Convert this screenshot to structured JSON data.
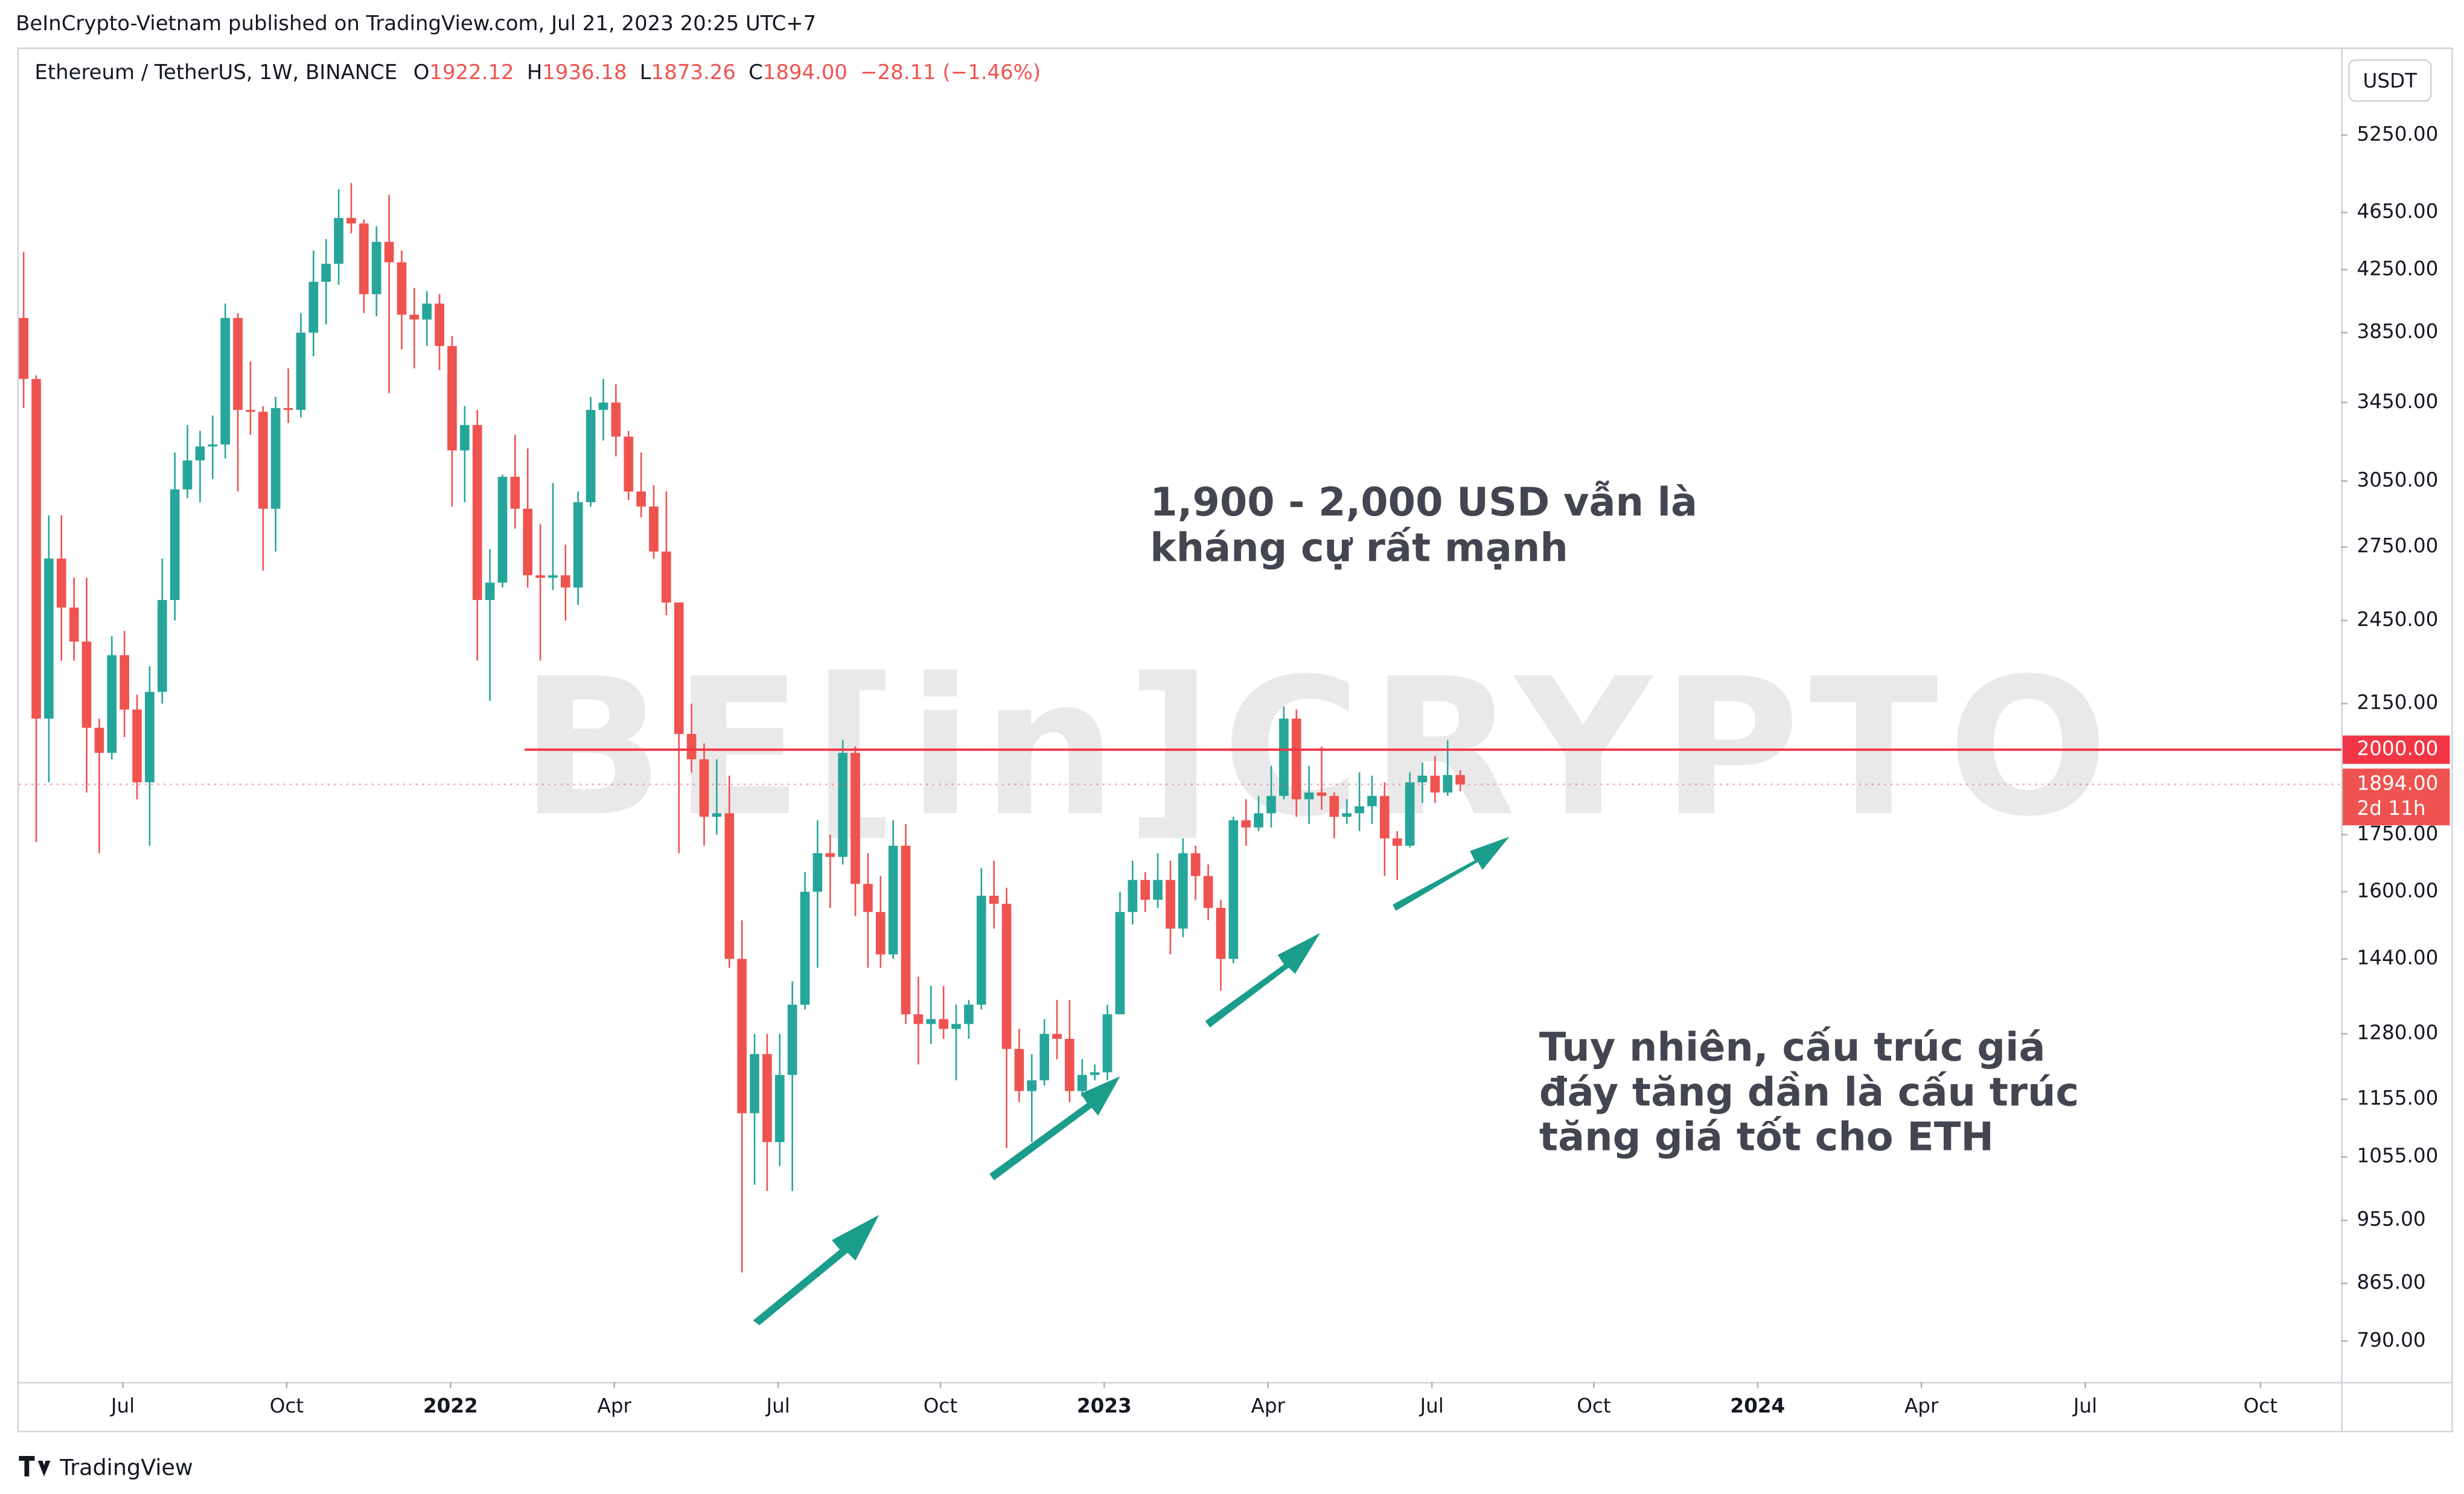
{
  "header": {
    "published": "BeInCrypto-Vietnam published on TradingView.com, Jul 21, 2023 20:25 UTC+7",
    "brand": "TradingView"
  },
  "chart_data": {
    "type": "candlestick",
    "symbol": "Ethereum / TetherUS, 1W, BINANCE",
    "legend": {
      "o": "O",
      "open": "1922.12",
      "h": "H",
      "high": "1936.18",
      "l": "L",
      "low": "1873.26",
      "c": "C",
      "close": "1894.00",
      "change": "−28.11 (−1.46%)"
    },
    "currency": "USDT",
    "watermark": "BE[in]CRYPTO",
    "up_color": "#26a69a",
    "down_color": "#ef5350",
    "log_scale": true,
    "ylim": [
      741,
      6025
    ],
    "yticks": [
      {
        "value": 5250,
        "label": "5250.00"
      },
      {
        "value": 4650,
        "label": "4650.00"
      },
      {
        "value": 4250,
        "label": "4250.00"
      },
      {
        "value": 3850,
        "label": "3850.00"
      },
      {
        "value": 3450,
        "label": "3450.00"
      },
      {
        "value": 3050,
        "label": "3050.00"
      },
      {
        "value": 2750,
        "label": "2750.00"
      },
      {
        "value": 2450,
        "label": "2450.00"
      },
      {
        "value": 2150,
        "label": "2150.00"
      },
      {
        "value": 1750,
        "label": "1750.00"
      },
      {
        "value": 1600,
        "label": "1600.00"
      },
      {
        "value": 1440,
        "label": "1440.00"
      },
      {
        "value": 1280,
        "label": "1280.00"
      },
      {
        "value": 1155,
        "label": "1155.00"
      },
      {
        "value": 1055,
        "label": "1055.00"
      },
      {
        "value": 955,
        "label": "955.00"
      },
      {
        "value": 865,
        "label": "865.00"
      },
      {
        "value": 790,
        "label": "790.00"
      }
    ],
    "xlim": [
      -0.375,
      183.9
    ],
    "xticks": [
      {
        "value": 7.875,
        "label": "Jul"
      },
      {
        "value": 20.875,
        "label": "Oct"
      },
      {
        "value": 33.875,
        "label": "2022"
      },
      {
        "value": 46.875,
        "label": "Apr"
      },
      {
        "value": 59.875,
        "label": "Jul"
      },
      {
        "value": 72.75,
        "label": "Oct"
      },
      {
        "value": 85.75,
        "label": "2023"
      },
      {
        "value": 98.75,
        "label": "Apr"
      },
      {
        "value": 111.75,
        "label": "Jul"
      },
      {
        "value": 124.6,
        "label": "Oct"
      },
      {
        "value": 137.6,
        "label": "2024"
      },
      {
        "value": 150.6,
        "label": "Apr"
      },
      {
        "value": 163.6,
        "label": "Jul"
      },
      {
        "value": 177.5,
        "label": "Oct"
      }
    ],
    "candles": [
      [
        3940,
        4370,
        3420,
        3580
      ],
      [
        3580,
        3600,
        1730,
        2100
      ],
      [
        2100,
        2890,
        1900,
        2700
      ],
      [
        2700,
        2890,
        2300,
        2500
      ],
      [
        2500,
        2620,
        2300,
        2370
      ],
      [
        2370,
        2620,
        1870,
        2070
      ],
      [
        2070,
        2100,
        1700,
        1990
      ],
      [
        1990,
        2390,
        1970,
        2320
      ],
      [
        2320,
        2410,
        2040,
        2130
      ],
      [
        2130,
        2180,
        1850,
        1900
      ],
      [
        1900,
        2280,
        1720,
        2190
      ],
      [
        2190,
        2700,
        2150,
        2530
      ],
      [
        2530,
        3190,
        2450,
        3010
      ],
      [
        3010,
        3330,
        2970,
        3150
      ],
      [
        3150,
        3300,
        2950,
        3220
      ],
      [
        3220,
        3380,
        3060,
        3230
      ],
      [
        3230,
        4030,
        3160,
        3940
      ],
      [
        3940,
        3970,
        3000,
        3410
      ],
      [
        3410,
        3680,
        3280,
        3400
      ],
      [
        3400,
        3430,
        2650,
        2920
      ],
      [
        2920,
        3480,
        2730,
        3420
      ],
      [
        3420,
        3640,
        3340,
        3410
      ],
      [
        3410,
        3970,
        3370,
        3850
      ],
      [
        3850,
        4380,
        3710,
        4170
      ],
      [
        4170,
        4460,
        3900,
        4290
      ],
      [
        4290,
        4820,
        4150,
        4610
      ],
      [
        4610,
        4870,
        4500,
        4570
      ],
      [
        4570,
        4600,
        3970,
        4090
      ],
      [
        4090,
        4550,
        3950,
        4440
      ],
      [
        4440,
        4780,
        3500,
        4300
      ],
      [
        4300,
        4380,
        3750,
        3960
      ],
      [
        3960,
        4130,
        3640,
        3930
      ],
      [
        3930,
        4110,
        3770,
        4030
      ],
      [
        4030,
        4090,
        3630,
        3770
      ],
      [
        3770,
        3830,
        2930,
        3200
      ],
      [
        3200,
        3430,
        2950,
        3330
      ],
      [
        3330,
        3410,
        2300,
        2530
      ],
      [
        2530,
        2740,
        2160,
        2600
      ],
      [
        2600,
        3080,
        2580,
        3070
      ],
      [
        3070,
        3280,
        2830,
        2920
      ],
      [
        2920,
        3210,
        2580,
        2630
      ],
      [
        2630,
        2850,
        2300,
        2620
      ],
      [
        2620,
        3040,
        2570,
        2630
      ],
      [
        2630,
        2760,
        2450,
        2580
      ],
      [
        2580,
        3000,
        2510,
        2950
      ],
      [
        2950,
        3480,
        2930,
        3410
      ],
      [
        3410,
        3580,
        3250,
        3450
      ],
      [
        3450,
        3550,
        3170,
        3270
      ],
      [
        3270,
        3300,
        2960,
        3000
      ],
      [
        3000,
        3190,
        2880,
        2930
      ],
      [
        2930,
        3030,
        2700,
        2730
      ],
      [
        2730,
        3000,
        2470,
        2520
      ],
      [
        2520,
        2520,
        1700,
        2050
      ],
      [
        2050,
        2150,
        1930,
        1970
      ],
      [
        1970,
        2020,
        1720,
        1800
      ],
      [
        1800,
        1970,
        1750,
        1810
      ],
      [
        1810,
        1920,
        1420,
        1440
      ],
      [
        1440,
        1530,
        880,
        1130
      ],
      [
        1130,
        1280,
        1010,
        1240
      ],
      [
        1240,
        1280,
        1000,
        1080
      ],
      [
        1080,
        1280,
        1040,
        1200
      ],
      [
        1200,
        1390,
        1000,
        1340
      ],
      [
        1340,
        1650,
        1330,
        1600
      ],
      [
        1600,
        1790,
        1420,
        1700
      ],
      [
        1700,
        1750,
        1560,
        1690
      ],
      [
        1690,
        2030,
        1670,
        1990
      ],
      [
        1990,
        2010,
        1540,
        1620
      ],
      [
        1620,
        1700,
        1420,
        1550
      ],
      [
        1550,
        1640,
        1420,
        1450
      ],
      [
        1450,
        1790,
        1440,
        1720
      ],
      [
        1720,
        1780,
        1300,
        1320
      ],
      [
        1320,
        1400,
        1220,
        1300
      ],
      [
        1300,
        1380,
        1260,
        1310
      ],
      [
        1310,
        1380,
        1270,
        1290
      ],
      [
        1290,
        1340,
        1190,
        1300
      ],
      [
        1300,
        1350,
        1270,
        1340
      ],
      [
        1340,
        1660,
        1330,
        1590
      ],
      [
        1590,
        1680,
        1510,
        1570
      ],
      [
        1570,
        1610,
        1070,
        1250
      ],
      [
        1250,
        1290,
        1150,
        1170
      ],
      [
        1170,
        1240,
        1080,
        1190
      ],
      [
        1190,
        1310,
        1180,
        1280
      ],
      [
        1280,
        1350,
        1230,
        1270
      ],
      [
        1270,
        1350,
        1150,
        1170
      ],
      [
        1170,
        1230,
        1160,
        1200
      ],
      [
        1200,
        1220,
        1190,
        1205
      ],
      [
        1205,
        1340,
        1190,
        1320
      ],
      [
        1320,
        1600,
        1320,
        1550
      ],
      [
        1550,
        1680,
        1520,
        1630
      ],
      [
        1630,
        1650,
        1550,
        1580
      ],
      [
        1580,
        1700,
        1560,
        1630
      ],
      [
        1630,
        1680,
        1450,
        1510
      ],
      [
        1510,
        1740,
        1490,
        1700
      ],
      [
        1700,
        1720,
        1580,
        1640
      ],
      [
        1640,
        1670,
        1530,
        1560
      ],
      [
        1560,
        1580,
        1370,
        1440
      ],
      [
        1440,
        1800,
        1430,
        1790
      ],
      [
        1790,
        1850,
        1720,
        1770
      ],
      [
        1770,
        1860,
        1760,
        1810
      ],
      [
        1810,
        1950,
        1770,
        1860
      ],
      [
        1860,
        2140,
        1850,
        2100
      ],
      [
        2100,
        2130,
        1800,
        1850
      ],
      [
        1850,
        1950,
        1780,
        1870
      ],
      [
        1870,
        2010,
        1820,
        1860
      ],
      [
        1860,
        1870,
        1740,
        1800
      ],
      [
        1800,
        1850,
        1780,
        1810
      ],
      [
        1810,
        1930,
        1760,
        1830
      ],
      [
        1830,
        1920,
        1780,
        1860
      ],
      [
        1860,
        1900,
        1640,
        1740
      ],
      [
        1740,
        1760,
        1630,
        1720
      ],
      [
        1720,
        1930,
        1715,
        1900
      ],
      [
        1900,
        1960,
        1840,
        1920
      ],
      [
        1920,
        1980,
        1840,
        1870
      ],
      [
        1870,
        2030,
        1860,
        1922
      ],
      [
        1922.12,
        1936.18,
        1873.26,
        1894
      ]
    ],
    "hline": {
      "value": 2000,
      "label": "2000.00",
      "color": "#f23645"
    },
    "last_price": {
      "value": 1894,
      "label": "1894.00",
      "countdown": "2d 11h"
    },
    "annotations": [
      {
        "lines": [
          "1,900 - 2,000 USD vẫn là",
          "kháng cự rất mạnh"
        ]
      },
      {
        "lines": [
          "Tuy nhiên, cấu trúc giá",
          "đáy tăng dần là cấu trúc",
          "tăng giá tốt cho ETH"
        ]
      }
    ]
  }
}
